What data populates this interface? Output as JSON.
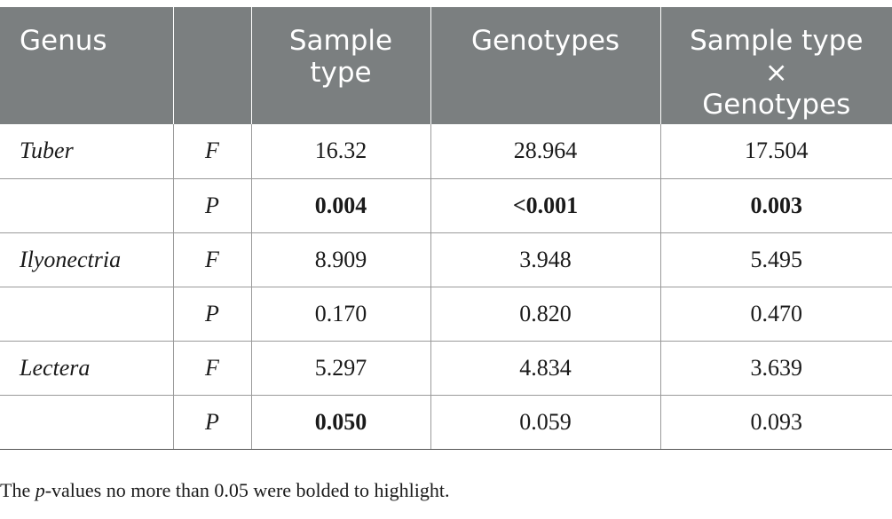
{
  "header": {
    "genus": "Genus",
    "stat": "",
    "sample_type": "Sample type",
    "genotypes": "Genotypes",
    "interaction": [
      "Sample type",
      "×",
      "Genotypes"
    ]
  },
  "rows": [
    {
      "genus": "Tuber",
      "stat": "F",
      "sample_type": "16.32",
      "genotypes": "28.964",
      "interaction": "17.504",
      "bold": [
        false,
        false,
        false
      ]
    },
    {
      "genus": "",
      "stat": "P",
      "sample_type": "0.004",
      "genotypes": "<0.001",
      "interaction": "0.003",
      "bold": [
        true,
        true,
        true
      ]
    },
    {
      "genus": "Ilyonectria",
      "stat": "F",
      "sample_type": "8.909",
      "genotypes": "3.948",
      "interaction": "5.495",
      "bold": [
        false,
        false,
        false
      ]
    },
    {
      "genus": "",
      "stat": "P",
      "sample_type": "0.170",
      "genotypes": "0.820",
      "interaction": "0.470",
      "bold": [
        false,
        false,
        false
      ]
    },
    {
      "genus": "Lectera",
      "stat": "F",
      "sample_type": "5.297",
      "genotypes": "4.834",
      "interaction": "3.639",
      "bold": [
        false,
        false,
        false
      ]
    },
    {
      "genus": "",
      "stat": "P",
      "sample_type": "0.050",
      "genotypes": "0.059",
      "interaction": "0.093",
      "bold": [
        true,
        false,
        false
      ]
    }
  ],
  "footnote": {
    "prefix": "The ",
    "italic": "p",
    "suffix": "-values no more than 0.05 were bolded to highlight."
  }
}
